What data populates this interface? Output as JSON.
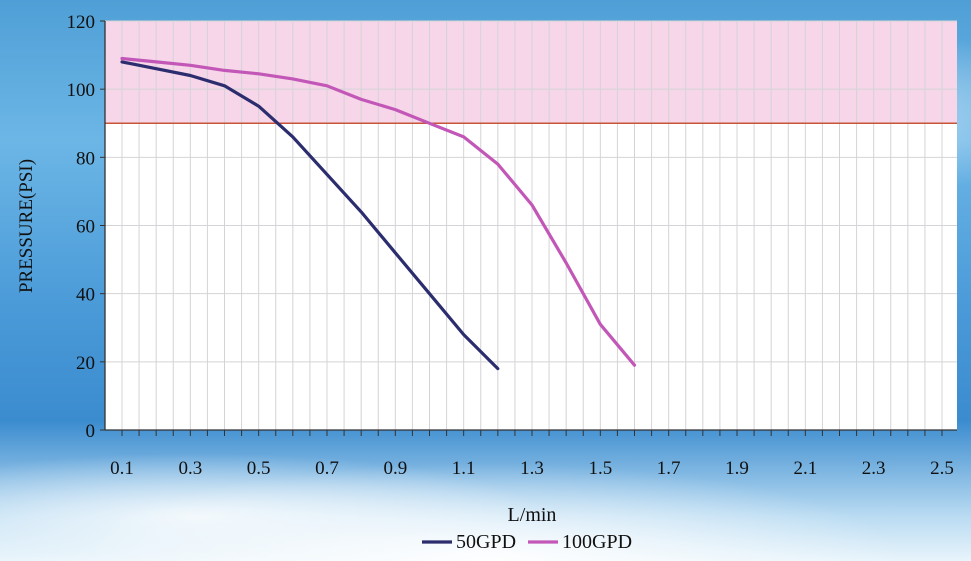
{
  "chart_data": {
    "type": "line",
    "title": "",
    "xlabel": "L/min",
    "ylabel": "PRESSURE(PSI)",
    "xlim": [
      0.1,
      2.5
    ],
    "ylim": [
      0,
      120
    ],
    "x_ticks": [
      "0.1",
      "0.3",
      "0.5",
      "0.7",
      "0.9",
      "1.1",
      "1.3",
      "1.5",
      "1.7",
      "1.9",
      "2.1",
      "2.3",
      "2.5"
    ],
    "y_ticks": [
      "0",
      "20",
      "40",
      "60",
      "80",
      "100",
      "120"
    ],
    "grid": true,
    "legend_position": "bottom-center",
    "threshold_line": {
      "y": 90,
      "color": "#c8553a"
    },
    "shaded_band": {
      "y_from": 90,
      "y_to": 120,
      "color": "#f6d6e8"
    },
    "series": [
      {
        "name": "50GPD",
        "color": "#2b2d6e",
        "x": [
          0.1,
          0.2,
          0.3,
          0.4,
          0.5,
          0.6,
          0.7,
          0.8,
          0.9,
          1.0,
          1.1,
          1.2
        ],
        "y": [
          108,
          106,
          104,
          101,
          95,
          86,
          75,
          64,
          52,
          40,
          28,
          18
        ]
      },
      {
        "name": "100GPD",
        "color": "#c257b8",
        "x": [
          0.1,
          0.2,
          0.3,
          0.4,
          0.5,
          0.6,
          0.7,
          0.8,
          0.9,
          1.0,
          1.1,
          1.2,
          1.3,
          1.4,
          1.5,
          1.6
        ],
        "y": [
          109,
          108,
          107,
          105.5,
          104.5,
          103,
          101,
          97,
          94,
          90,
          86,
          78,
          66,
          49,
          31,
          19
        ]
      }
    ]
  }
}
